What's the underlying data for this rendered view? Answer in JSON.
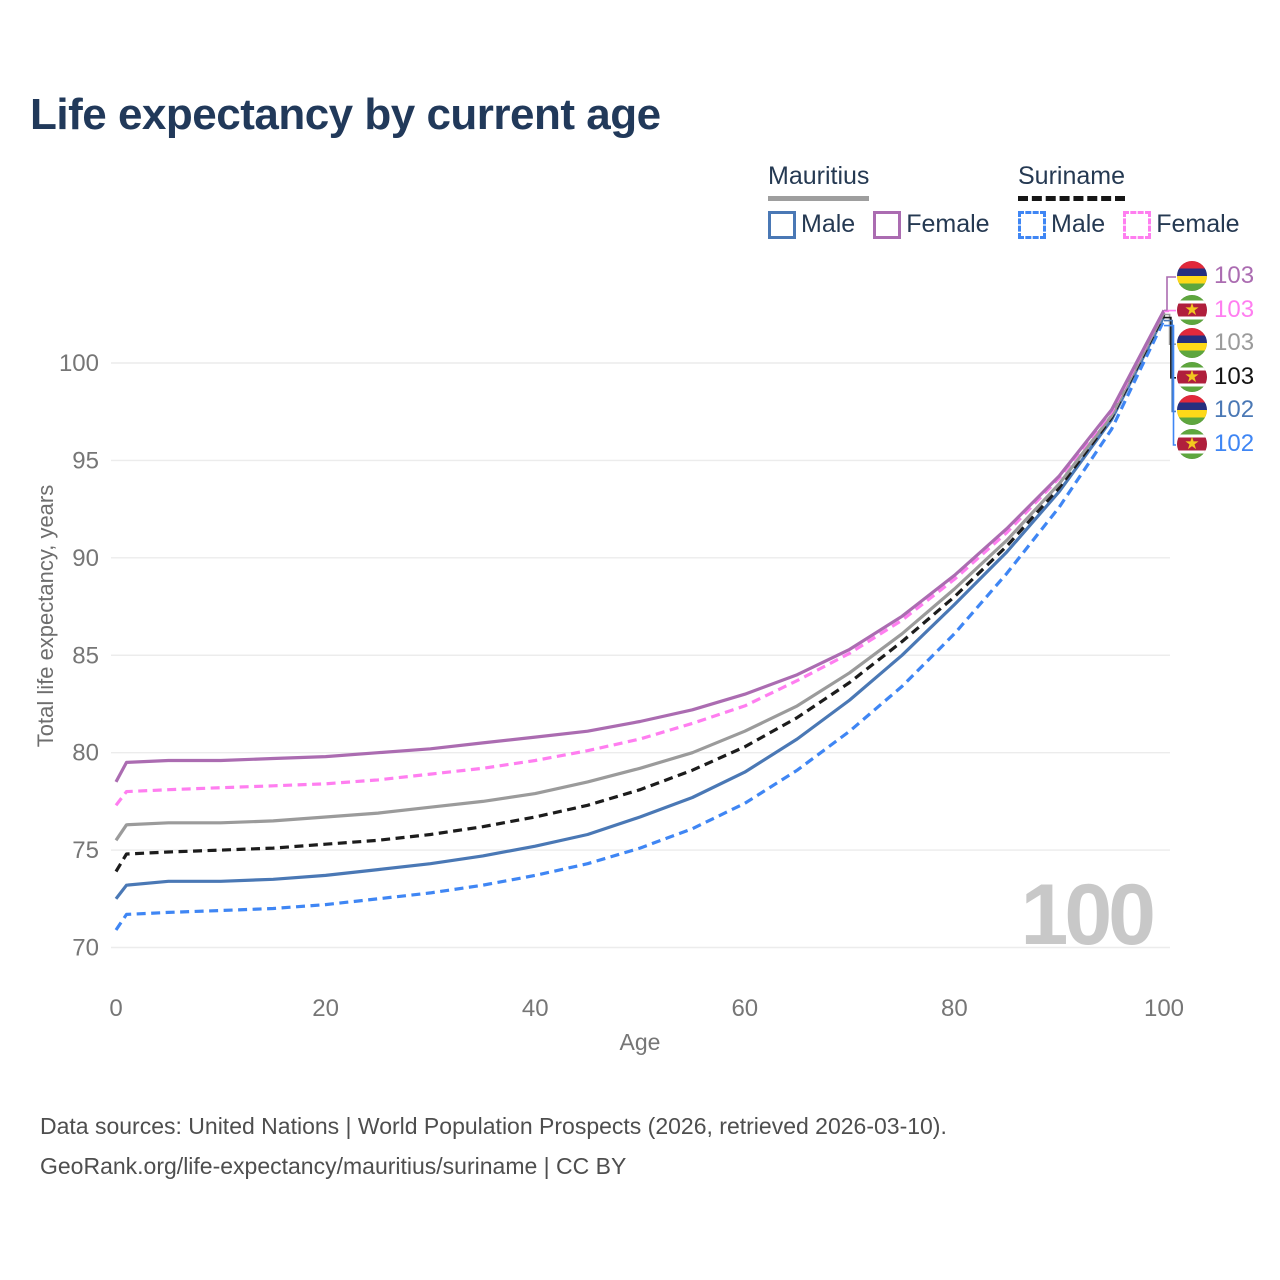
{
  "title": "Life expectancy by current age",
  "watermark_age": "100",
  "legend": {
    "mauritius_label": "Mauritius",
    "suriname_label": "Suriname",
    "male_label": "Male",
    "female_label": "Female"
  },
  "source": {
    "line1": "Data sources: United Nations | World Population Prospects (2026, retrieved 2026-03-10).",
    "line2": "GeoRank.org/life-expectancy/mauritius/suriname | CC BY"
  },
  "chart_data": {
    "type": "line",
    "title": "Life expectancy by current age",
    "xlabel": "Age",
    "ylabel": "Total life expectancy, years",
    "xlim": [
      0,
      100
    ],
    "ylim": [
      70,
      100
    ],
    "xticks": [
      0,
      20,
      40,
      60,
      80,
      100
    ],
    "yticks": [
      70,
      75,
      80,
      85,
      90,
      95,
      100
    ],
    "grid": "horizontal-only",
    "legend_position": "top-right",
    "x": [
      0,
      1,
      5,
      10,
      15,
      20,
      25,
      30,
      35,
      40,
      45,
      50,
      55,
      60,
      65,
      70,
      75,
      80,
      85,
      90,
      95,
      100
    ],
    "series": [
      {
        "id": "mauritius-female",
        "name": "Mauritius Female",
        "country": "Mauritius",
        "sex": "Female",
        "color": "#ab6cb1",
        "dash": false,
        "values": [
          78.5,
          79.5,
          79.6,
          79.6,
          79.7,
          79.8,
          80.0,
          80.2,
          80.5,
          80.8,
          81.1,
          81.6,
          82.2,
          83.0,
          84.0,
          85.3,
          87.0,
          89.1,
          91.5,
          94.2,
          97.6,
          102.7
        ]
      },
      {
        "id": "suriname-female",
        "name": "Suriname Female",
        "country": "Suriname",
        "sex": "Female",
        "color": "#ff7ef0",
        "dash": true,
        "values": [
          77.3,
          78.0,
          78.1,
          78.2,
          78.3,
          78.4,
          78.6,
          78.9,
          79.2,
          79.6,
          80.1,
          80.7,
          81.5,
          82.4,
          83.7,
          85.1,
          86.8,
          88.9,
          91.3,
          94.1,
          97.5,
          102.7
        ]
      },
      {
        "id": "mauritius-total",
        "name": "Mauritius Total",
        "country": "Mauritius",
        "sex": "Total",
        "color": "#9b9b9b",
        "dash": false,
        "values": [
          75.5,
          76.3,
          76.4,
          76.4,
          76.5,
          76.7,
          76.9,
          77.2,
          77.5,
          77.9,
          78.5,
          79.2,
          80.0,
          81.1,
          82.4,
          84.1,
          86.1,
          88.4,
          90.9,
          93.8,
          97.3,
          102.6
        ]
      },
      {
        "id": "suriname-total",
        "name": "Suriname Total",
        "country": "Suriname",
        "sex": "Total",
        "color": "#1c1c1c",
        "dash": true,
        "values": [
          73.9,
          74.8,
          74.9,
          75.0,
          75.1,
          75.3,
          75.5,
          75.8,
          76.2,
          76.7,
          77.3,
          78.1,
          79.1,
          80.3,
          81.8,
          83.6,
          85.7,
          88.0,
          90.6,
          93.6,
          97.2,
          102.5
        ]
      },
      {
        "id": "mauritius-male",
        "name": "Mauritius Male",
        "country": "Mauritius",
        "sex": "Male",
        "color": "#4a78b5",
        "dash": false,
        "values": [
          72.5,
          73.2,
          73.4,
          73.4,
          73.5,
          73.7,
          74.0,
          74.3,
          74.7,
          75.2,
          75.8,
          76.7,
          77.7,
          79.0,
          80.7,
          82.7,
          85.0,
          87.6,
          90.3,
          93.4,
          97.1,
          102.4
        ]
      },
      {
        "id": "suriname-male",
        "name": "Suriname Male",
        "country": "Suriname",
        "sex": "Male",
        "color": "#3f86f4",
        "dash": true,
        "values": [
          70.9,
          71.7,
          71.8,
          71.9,
          72.0,
          72.2,
          72.5,
          72.8,
          73.2,
          73.7,
          74.3,
          75.1,
          76.1,
          77.4,
          79.1,
          81.1,
          83.4,
          86.1,
          89.2,
          92.6,
          96.6,
          102.2
        ]
      }
    ],
    "end_labels": [
      {
        "value": "103",
        "color": "#ab6cb1",
        "flag": "mauritius"
      },
      {
        "value": "103",
        "color": "#ff7ef0",
        "flag": "suriname"
      },
      {
        "value": "103",
        "color": "#9b9b9b",
        "flag": "mauritius"
      },
      {
        "value": "103",
        "color": "#141414",
        "flag": "suriname"
      },
      {
        "value": "102",
        "color": "#4a78b5",
        "flag": "mauritius"
      },
      {
        "value": "102",
        "color": "#3f86f4",
        "flag": "suriname"
      }
    ]
  }
}
